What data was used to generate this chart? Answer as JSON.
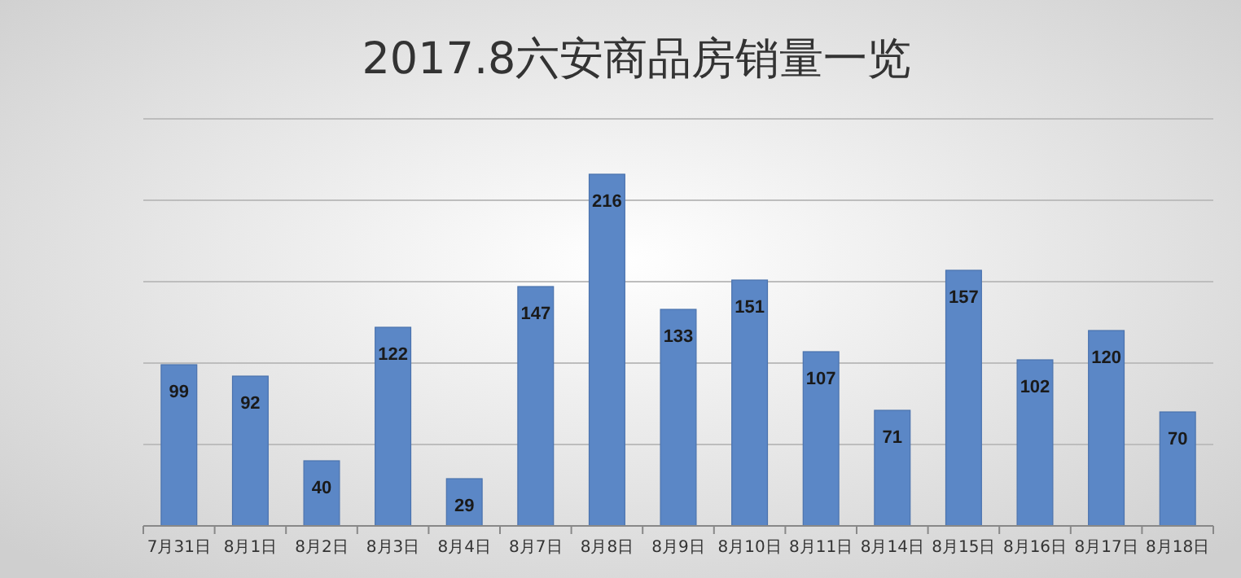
{
  "chart_data": {
    "type": "bar",
    "title": "2017.8六安商品房销量一览",
    "categories": [
      "7月31日",
      "8月1日",
      "8月2日",
      "8月3日",
      "8月4日",
      "8月7日",
      "8月8日",
      "8月9日",
      "8月10日",
      "8月11日",
      "8月14日",
      "8月15日",
      "8月16日",
      "8月17日",
      "8月18日"
    ],
    "values": [
      99,
      92,
      40,
      122,
      29,
      147,
      216,
      133,
      151,
      107,
      71,
      157,
      102,
      120,
      70
    ],
    "color": "#5b87c6",
    "data_labels": true,
    "ylim": [
      0,
      250
    ],
    "yticks": [
      {
        "value": 0,
        "label": null
      },
      {
        "value": 50,
        "label": null
      },
      {
        "value": 100,
        "label": null
      },
      {
        "value": 150,
        "label": null
      },
      {
        "value": 200,
        "label": null
      },
      {
        "value": 250,
        "label": null
      }
    ],
    "grid": "y",
    "tick_labels": "x"
  }
}
